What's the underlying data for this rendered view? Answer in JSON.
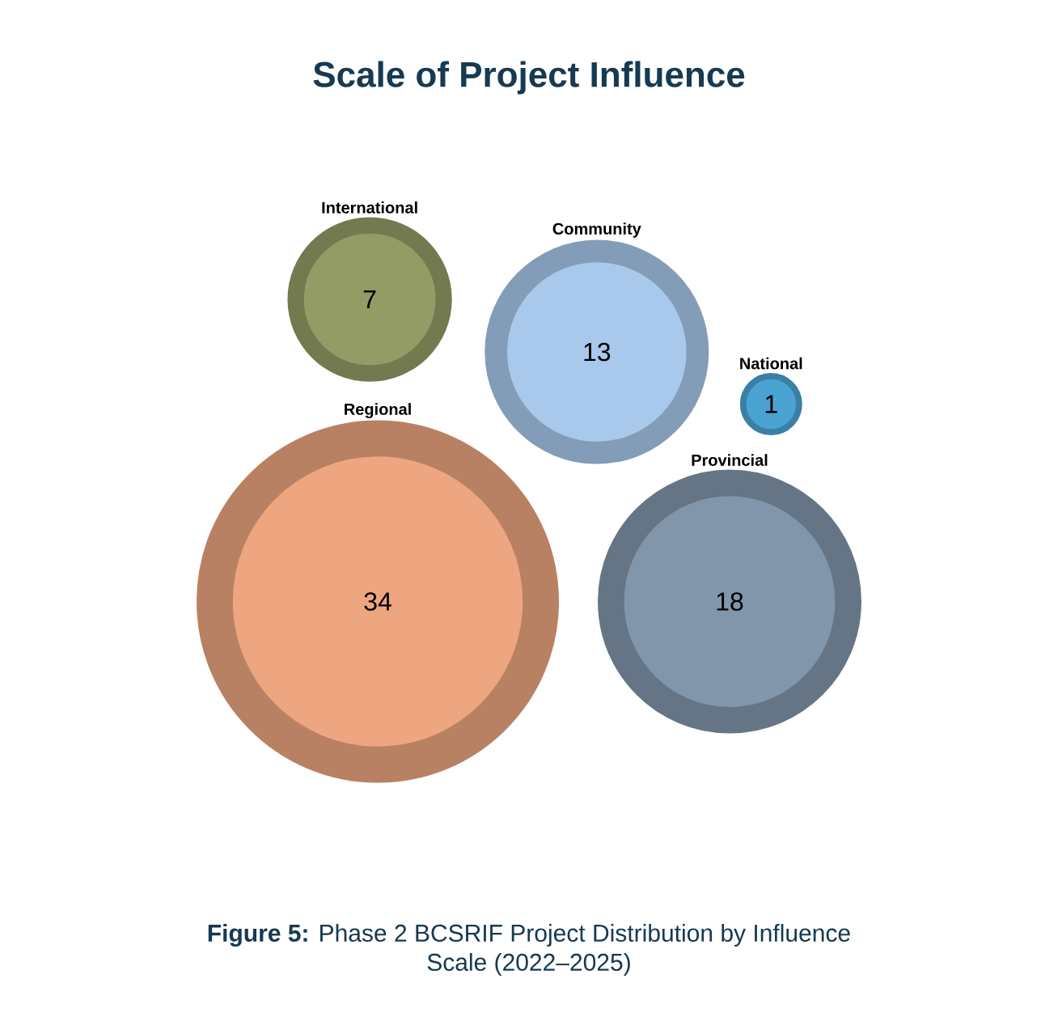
{
  "chart_data": {
    "type": "other",
    "title": "Scale of Project Influence",
    "categories": [
      "National",
      "International",
      "Regional",
      "Provincial",
      "Community"
    ],
    "values": [
      1,
      7,
      34,
      18,
      13
    ],
    "colors": [
      "#4aa3d3",
      "#949c66",
      "#eda680",
      "#8296ab",
      "#a8c8ec"
    ],
    "data_labels": true,
    "annotations": [
      "**Figure 5:** Phase 2 BCSRIF Project Distribution by Influence Scale (2022–2025)"
    ]
  }
}
